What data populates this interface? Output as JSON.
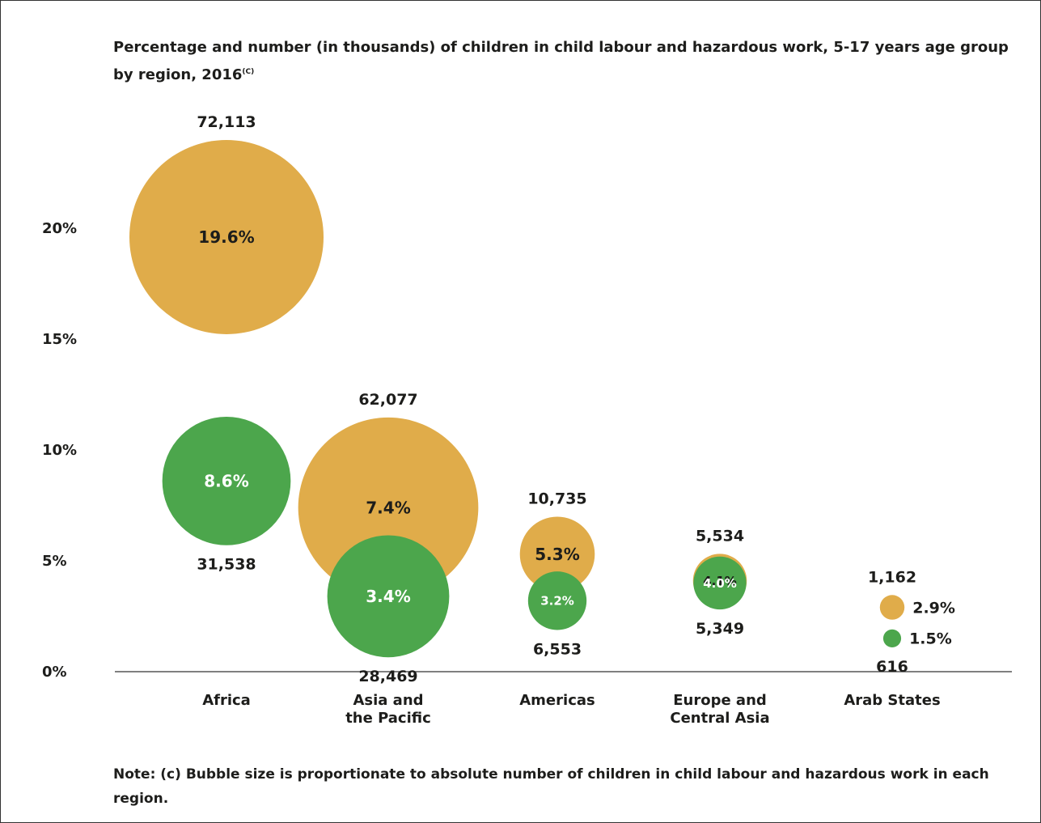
{
  "title": {
    "main": "Percentage and number (in thousands) of children in child labour and hazardous work, 5-17 years age group by region, 2016",
    "superscript": "(C)"
  },
  "note": "Note: (c) Bubble size is proportionate to absolute number of children in child labour and hazardous work in each region.",
  "colors": {
    "child_labour": "#e0ac4a",
    "hazardous": "#4ca64c",
    "axis": "#333333"
  },
  "chart_data": {
    "type": "scatter",
    "subtype": "bubble",
    "yticks": [
      "0%",
      "5%",
      "10%",
      "15%",
      "20%"
    ],
    "ylim": [
      0,
      20
    ],
    "categories": [
      "Africa",
      "Asia and the Pacific",
      "Americas",
      "Europe and Central Asia",
      "Arab States"
    ],
    "category_lines": [
      [
        "Africa"
      ],
      [
        "Asia and",
        "the Pacific"
      ],
      [
        "Americas"
      ],
      [
        "Europe and",
        "Central Asia"
      ],
      [
        "Arab States"
      ]
    ],
    "series": [
      {
        "key": "child_labour",
        "color": "#e0ac4a",
        "values": [
          19.6,
          7.4,
          5.3,
          4.1,
          2.9
        ],
        "value_labels": [
          "19.6%",
          "7.4%",
          "5.3%",
          "4.1%",
          "2.9%"
        ],
        "counts": [
          72113,
          62077,
          10735,
          5534,
          1162
        ],
        "count_labels": [
          "72,113",
          "62,077",
          "10,735",
          "5,534",
          "1,162"
        ]
      },
      {
        "key": "hazardous",
        "color": "#4ca64c",
        "values": [
          8.6,
          3.4,
          3.2,
          4.0,
          1.5
        ],
        "value_labels": [
          "8.6%",
          "3.4%",
          "3.2%",
          "4.0%",
          "1.5%"
        ],
        "counts": [
          31538,
          28469,
          6553,
          5349,
          616
        ],
        "count_labels": [
          "31,538",
          "28,469",
          "6,553",
          "5,349",
          "616"
        ]
      }
    ],
    "grid": false,
    "legend": "none"
  }
}
